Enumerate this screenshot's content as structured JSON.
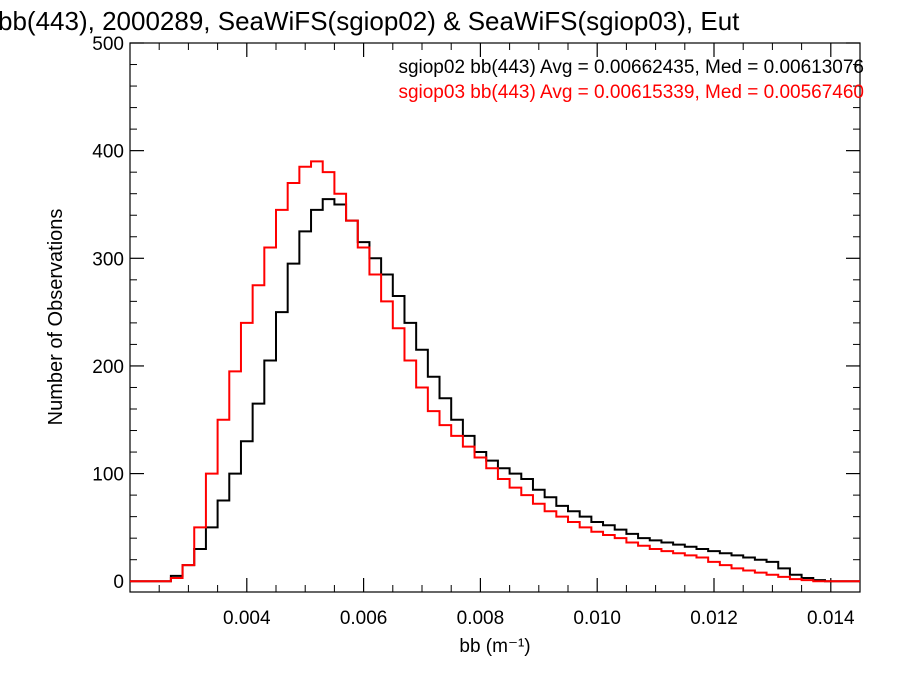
{
  "chart_data": {
    "type": "step-histogram",
    "title": "bb(443), 2000289, SeaWiFS(sgiop02) & SeaWiFS(sgiop03), Eut",
    "xlabel": "bb (m⁻¹)",
    "ylabel": "Number of Observations",
    "xlim": [
      0.002,
      0.0145
    ],
    "ylim": [
      -10,
      500
    ],
    "xticks": [
      0.004,
      0.006,
      0.008,
      0.01,
      0.012,
      0.014
    ],
    "xtick_labels": [
      "0.004",
      "0.006",
      "0.008",
      "0.010",
      "0.012",
      "0.014"
    ],
    "yticks": [
      0,
      100,
      200,
      300,
      400,
      500
    ],
    "ytick_labels": [
      "0",
      "100",
      "200",
      "300",
      "400",
      "500"
    ],
    "grid": false,
    "legend": "top-right",
    "series": [
      {
        "name": "sgiop02",
        "color": "#000000",
        "stat_label": "sgiop02 bb(443) Avg = 0.00662435, Med = 0.00613076",
        "x": [
          0.0026,
          0.0028,
          0.003,
          0.0032,
          0.0034,
          0.0036,
          0.0038,
          0.004,
          0.0042,
          0.0044,
          0.0046,
          0.0048,
          0.005,
          0.0052,
          0.0054,
          0.0056,
          0.0058,
          0.006,
          0.0062,
          0.0064,
          0.0066,
          0.0068,
          0.007,
          0.0072,
          0.0074,
          0.0076,
          0.0078,
          0.008,
          0.0082,
          0.0084,
          0.0086,
          0.0088,
          0.009,
          0.0092,
          0.0094,
          0.0096,
          0.0098,
          0.01,
          0.0102,
          0.0104,
          0.0106,
          0.0108,
          0.011,
          0.0112,
          0.0114,
          0.0116,
          0.0118,
          0.012,
          0.0122,
          0.0124,
          0.0126,
          0.0128,
          0.013,
          0.0132,
          0.0134,
          0.0136,
          0.0138,
          0.014,
          0.0142
        ],
        "values": [
          0,
          5,
          15,
          30,
          50,
          75,
          100,
          130,
          165,
          205,
          250,
          295,
          325,
          345,
          355,
          350,
          335,
          315,
          300,
          285,
          265,
          240,
          215,
          190,
          170,
          150,
          135,
          120,
          112,
          105,
          100,
          95,
          85,
          78,
          70,
          65,
          60,
          55,
          52,
          48,
          44,
          40,
          38,
          36,
          34,
          32,
          30,
          28,
          26,
          24,
          22,
          20,
          18,
          12,
          6,
          3,
          1,
          0,
          0
        ]
      },
      {
        "name": "sgiop03",
        "color": "#ff0000",
        "stat_label": "sgiop03 bb(443) Avg = 0.00615339, Med = 0.00567460",
        "x": [
          0.0026,
          0.0028,
          0.003,
          0.0032,
          0.0034,
          0.0036,
          0.0038,
          0.004,
          0.0042,
          0.0044,
          0.0046,
          0.0048,
          0.005,
          0.0052,
          0.0054,
          0.0056,
          0.0058,
          0.006,
          0.0062,
          0.0064,
          0.0066,
          0.0068,
          0.007,
          0.0072,
          0.0074,
          0.0076,
          0.0078,
          0.008,
          0.0082,
          0.0084,
          0.0086,
          0.0088,
          0.009,
          0.0092,
          0.0094,
          0.0096,
          0.0098,
          0.01,
          0.0102,
          0.0104,
          0.0106,
          0.0108,
          0.011,
          0.0112,
          0.0114,
          0.0116,
          0.0118,
          0.012,
          0.0122,
          0.0124,
          0.0126,
          0.0128,
          0.013,
          0.0132,
          0.0134,
          0.0136,
          0.0138,
          0.014,
          0.0142
        ],
        "values": [
          0,
          3,
          15,
          50,
          100,
          150,
          195,
          240,
          275,
          310,
          345,
          370,
          385,
          390,
          380,
          360,
          335,
          310,
          285,
          260,
          235,
          205,
          180,
          158,
          145,
          135,
          125,
          115,
          105,
          95,
          87,
          80,
          72,
          65,
          60,
          55,
          50,
          46,
          43,
          40,
          36,
          33,
          30,
          28,
          26,
          24,
          22,
          18,
          15,
          12,
          10,
          8,
          6,
          4,
          2,
          1,
          0,
          0,
          0
        ]
      }
    ]
  }
}
